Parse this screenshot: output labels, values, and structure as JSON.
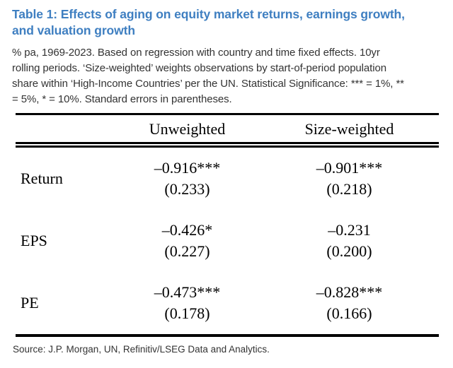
{
  "header": {
    "title_line1": "Table 1: Effects of aging on equity market returns, earnings growth,",
    "title_line2": "and valuation growth",
    "title_full": "Table 1: Effects of aging on equity market returns, earnings growth, and valuation growth"
  },
  "notes": {
    "lines": [
      "% pa, 1969-2023. Based on regression with country and time fixed effects. 10yr",
      "rolling periods. ‘Size-weighted’ weights observations by start-of-period population",
      "share within ‘High-Income Countries’ per the UN. Statistical Significance: *** = 1%, **",
      "= 5%, * = 10%. Standard errors in parentheses."
    ]
  },
  "table": {
    "headers": {
      "label": "",
      "unweighted": "Unweighted",
      "size_weighted": "Size-weighted"
    },
    "rows": [
      {
        "label": "Return",
        "unweighted": {
          "coef": "–0.916***",
          "se": "(0.233)"
        },
        "size_weighted": {
          "coef": "–0.901***",
          "se": "(0.218)"
        }
      },
      {
        "label": "EPS",
        "unweighted": {
          "coef": "–0.426*",
          "se": "(0.227)"
        },
        "size_weighted": {
          "coef": "–0.231",
          "se": "(0.200)"
        }
      },
      {
        "label": "PE",
        "unweighted": {
          "coef": "–0.473***",
          "se": "(0.178)"
        },
        "size_weighted": {
          "coef": "–0.828***",
          "se": "(0.166)"
        }
      }
    ]
  },
  "source": "Source: J.P. Morgan, UN, Refinitiv/LSEG Data and Analytics.",
  "colors": {
    "title_blue": "#3f7fc1",
    "body_text": "#333333",
    "table_text": "#000000",
    "rule": "#000000",
    "background": "#ffffff"
  }
}
